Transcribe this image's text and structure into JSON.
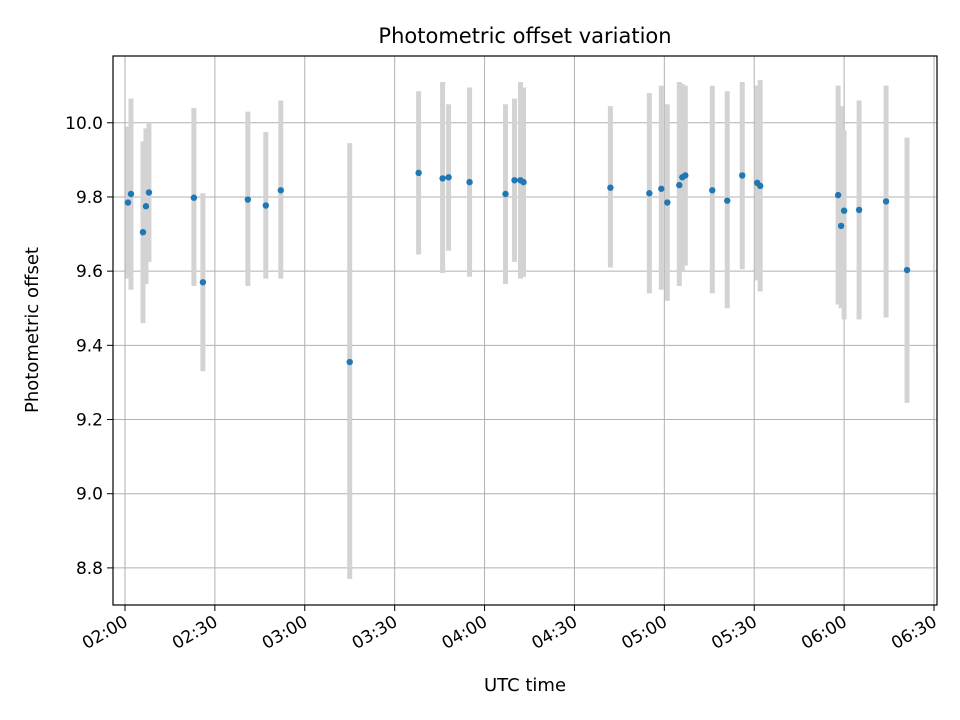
{
  "chart_data": {
    "type": "scatter",
    "title": "Photometric offset variation",
    "xlabel": "UTC time",
    "ylabel": "Photometric offset",
    "xlim": [
      "01:56",
      "06:31"
    ],
    "ylim": [
      8.7,
      10.18
    ],
    "x_ticks": [
      "02:00",
      "02:30",
      "03:00",
      "03:30",
      "04:00",
      "04:30",
      "05:00",
      "05:30",
      "06:00",
      "06:30"
    ],
    "y_ticks": [
      "8.8",
      "9.0",
      "9.2",
      "9.4",
      "9.6",
      "9.8",
      "10.0"
    ],
    "y_tick_values": [
      8.8,
      9.0,
      9.2,
      9.4,
      9.6,
      9.8,
      10.0
    ],
    "grid": true,
    "colors": {
      "points": "#1f77b4",
      "errorbars": "#d3d3d3",
      "grid": "#b0b0b0"
    },
    "points": [
      {
        "x": "02:01",
        "y": 9.785,
        "low": 9.58,
        "high": 9.99
      },
      {
        "x": "02:02",
        "y": 9.808,
        "low": 9.55,
        "high": 10.065
      },
      {
        "x": "02:06",
        "y": 9.705,
        "low": 9.46,
        "high": 9.95
      },
      {
        "x": "02:07",
        "y": 9.775,
        "low": 9.565,
        "high": 9.985
      },
      {
        "x": "02:08",
        "y": 9.812,
        "low": 9.625,
        "high": 10.0
      },
      {
        "x": "02:23",
        "y": 9.798,
        "low": 9.56,
        "high": 10.04
      },
      {
        "x": "02:26",
        "y": 9.57,
        "low": 9.33,
        "high": 9.81
      },
      {
        "x": "02:41",
        "y": 9.793,
        "low": 9.56,
        "high": 10.03
      },
      {
        "x": "02:47",
        "y": 9.777,
        "low": 9.58,
        "high": 9.975
      },
      {
        "x": "02:52",
        "y": 9.818,
        "low": 9.58,
        "high": 10.06
      },
      {
        "x": "03:15",
        "y": 9.355,
        "low": 8.77,
        "high": 9.945
      },
      {
        "x": "03:38",
        "y": 9.865,
        "low": 9.645,
        "high": 10.085
      },
      {
        "x": "03:46",
        "y": 9.85,
        "low": 9.595,
        "high": 10.11
      },
      {
        "x": "03:48",
        "y": 9.853,
        "low": 9.655,
        "high": 10.05
      },
      {
        "x": "03:55",
        "y": 9.84,
        "low": 9.585,
        "high": 10.095
      },
      {
        "x": "04:07",
        "y": 9.808,
        "low": 9.565,
        "high": 10.05
      },
      {
        "x": "04:10",
        "y": 9.845,
        "low": 9.625,
        "high": 10.065
      },
      {
        "x": "04:12",
        "y": 9.845,
        "low": 9.58,
        "high": 10.11
      },
      {
        "x": "04:13",
        "y": 9.84,
        "low": 9.585,
        "high": 10.095
      },
      {
        "x": "04:42",
        "y": 9.825,
        "low": 9.61,
        "high": 10.045
      },
      {
        "x": "04:55",
        "y": 9.81,
        "low": 9.54,
        "high": 10.08
      },
      {
        "x": "04:59",
        "y": 9.822,
        "low": 9.55,
        "high": 10.1
      },
      {
        "x": "05:01",
        "y": 9.785,
        "low": 9.52,
        "high": 10.05
      },
      {
        "x": "05:05",
        "y": 9.832,
        "low": 9.56,
        "high": 10.11
      },
      {
        "x": "05:06",
        "y": 9.853,
        "low": 9.6,
        "high": 10.105
      },
      {
        "x": "05:07",
        "y": 9.858,
        "low": 9.615,
        "high": 10.1
      },
      {
        "x": "05:16",
        "y": 9.818,
        "low": 9.54,
        "high": 10.1
      },
      {
        "x": "05:21",
        "y": 9.79,
        "low": 9.5,
        "high": 10.085
      },
      {
        "x": "05:26",
        "y": 9.858,
        "low": 9.605,
        "high": 10.11
      },
      {
        "x": "05:31",
        "y": 9.838,
        "low": 9.575,
        "high": 10.1
      },
      {
        "x": "05:32",
        "y": 9.83,
        "low": 9.545,
        "high": 10.115
      },
      {
        "x": "05:58",
        "y": 9.805,
        "low": 9.51,
        "high": 10.1
      },
      {
        "x": "05:59",
        "y": 9.722,
        "low": 9.5,
        "high": 10.045
      },
      {
        "x": "06:00",
        "y": 9.763,
        "low": 9.47,
        "high": 9.98
      },
      {
        "x": "06:05",
        "y": 9.765,
        "low": 9.47,
        "high": 10.06
      },
      {
        "x": "06:14",
        "y": 9.788,
        "low": 9.475,
        "high": 10.1
      },
      {
        "x": "06:21",
        "y": 9.603,
        "low": 9.245,
        "high": 9.96
      }
    ]
  }
}
